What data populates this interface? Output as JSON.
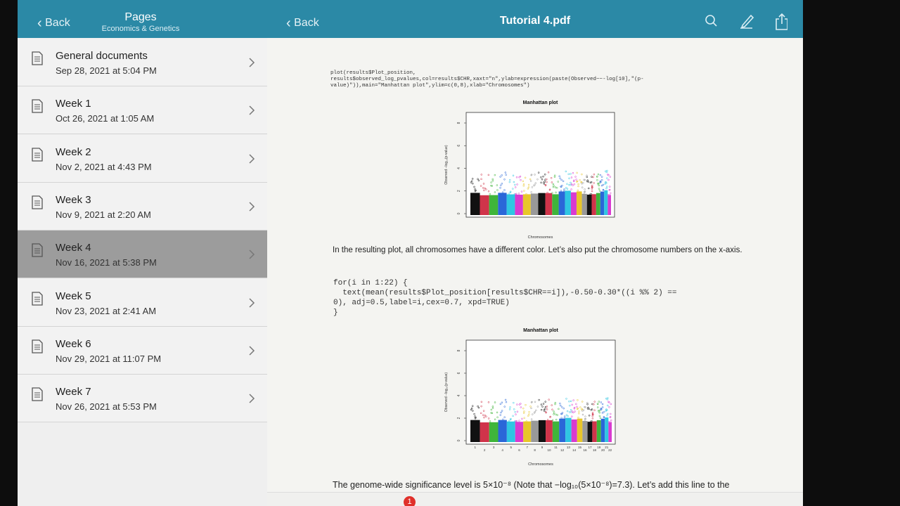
{
  "sidebar": {
    "back": "Back",
    "title": "Pages",
    "subtitle": "Economics & Genetics",
    "items": [
      {
        "name": "General documents",
        "date": "Sep 28, 2021 at 5:04 PM"
      },
      {
        "name": "Week 1",
        "date": "Oct 26, 2021 at 1:05 AM"
      },
      {
        "name": "Week 2",
        "date": "Nov 2, 2021 at 4:43 PM"
      },
      {
        "name": "Week 3",
        "date": "Nov 9, 2021 at 2:20 AM"
      },
      {
        "name": "Week 4",
        "date": "Nov 16, 2021 at 5:38 PM"
      },
      {
        "name": "Week 5",
        "date": "Nov 23, 2021 at 2:41 AM"
      },
      {
        "name": "Week 6",
        "date": "Nov 29, 2021 at 11:07 PM"
      },
      {
        "name": "Week 7",
        "date": "Nov 26, 2021 at 5:53 PM"
      }
    ],
    "selected": 4
  },
  "viewer": {
    "back": "Back",
    "title": "Tutorial 4.pdf",
    "code1": "plot(results$Plot_position,\nresults$observed_log_pvalues,col=results$CHR,xaxt=\"n\",ylab=expression(paste(Observed~~-log[10],\"(p-\nvalue)\")),main=\"Manhattan plot\",ylim=c(0,8),xlab=\"Chromosomes\")",
    "plot1": {
      "title": "Manhattan plot",
      "ylabel": "Observed −log₁₀(p-value)",
      "xlabel": "Chromosomes",
      "yticks": [
        0,
        2,
        4,
        6,
        8
      ]
    },
    "paragraph1": "In the resulting plot, all chromosomes have a different color. Let’s also put the chromosome numbers on the x-axis.",
    "code2": "for(i in 1:22) {\n  text(mean(results$Plot_position[results$CHR==i]),-0.50-0.30*((i %% 2) ==\n0), adj=0.5,label=i,cex=0.7, xpd=TRUE)\n}",
    "plot2": {
      "title": "Manhattan plot",
      "ylabel": "Observed −log₁₀(p-value)",
      "xlabel": "Chromosomes",
      "yticks": [
        0,
        2,
        4,
        6,
        8
      ],
      "xticks": [
        1,
        2,
        3,
        4,
        5,
        6,
        7,
        8,
        9,
        10,
        11,
        12,
        13,
        14,
        15,
        16,
        17,
        18,
        19,
        20,
        21,
        22
      ]
    },
    "paragraph2": "The genome-wide significance level is 5×10⁻⁸ (Note that −log₁₀(5×10⁻⁸)=7.3). Let’s add this line to the"
  },
  "toolbar": {
    "badge": "1"
  }
}
